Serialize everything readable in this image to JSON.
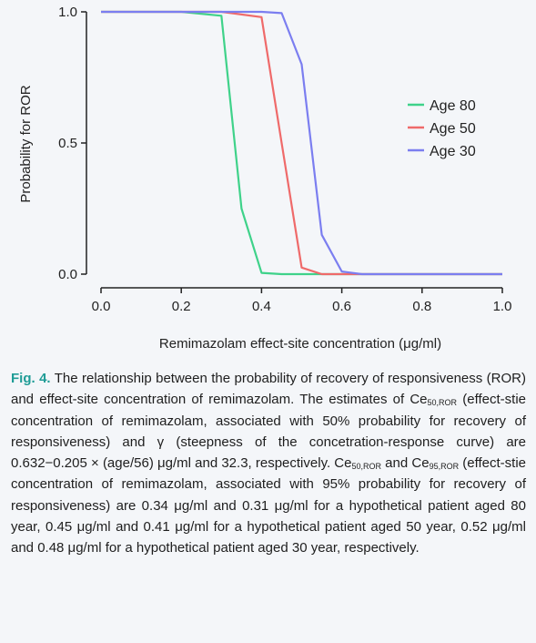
{
  "chart_data": {
    "type": "line",
    "xlabel": "Remimazolam effect-site concentration (μg/ml)",
    "ylabel": "Probability for ROR",
    "xlim": [
      0,
      1.0
    ],
    "ylim": [
      0,
      1.0
    ],
    "xticks": [
      "0.0",
      "0.2",
      "0.4",
      "0.6",
      "0.8",
      "1.0"
    ],
    "yticks": [
      "0.0",
      "0.5",
      "1.0"
    ],
    "grid": false,
    "legend_position": "right",
    "series": [
      {
        "name": "Age 80",
        "color": "#3fd28a",
        "points": [
          [
            0,
            1
          ],
          [
            0.2,
            1
          ],
          [
            0.3,
            0.985
          ],
          [
            0.35,
            0.25
          ],
          [
            0.4,
            0.005
          ],
          [
            0.45,
            0
          ],
          [
            1.0,
            0
          ]
        ]
      },
      {
        "name": "Age 50",
        "color": "#ef6a6a",
        "points": [
          [
            0,
            1
          ],
          [
            0.3,
            1
          ],
          [
            0.4,
            0.98
          ],
          [
            0.45,
            0.5
          ],
          [
            0.5,
            0.025
          ],
          [
            0.55,
            0
          ],
          [
            1.0,
            0
          ]
        ]
      },
      {
        "name": "Age 30",
        "color": "#7b7ef0",
        "points": [
          [
            0,
            1
          ],
          [
            0.3,
            1
          ],
          [
            0.4,
            1
          ],
          [
            0.45,
            0.995
          ],
          [
            0.5,
            0.8
          ],
          [
            0.55,
            0.15
          ],
          [
            0.6,
            0.01
          ],
          [
            0.65,
            0
          ],
          [
            1.0,
            0
          ]
        ]
      }
    ]
  },
  "caption": {
    "fig_label": "Fig. 4.",
    "p1": " The relationship between the probability of recovery of responsiveness (ROR) and effect-site concentration of remimazolam. The estimates of Ce",
    "sub1": "50,ROR",
    "p2": " (effect-stie concentration of remimazolam, associated with 50% probability for recovery of responsiveness) and γ (steepness of the concetration-response curve) are 0.632−0.205 × (age/56) μg/ml and 32.3, respectively. Ce",
    "sub2": "50,ROR",
    "p3": " and Ce",
    "sub3": "95,ROR",
    "p4": " (effect-stie concentration of remimazolam, associated with 95% probability for recovery of responsiveness) are 0.34 μg/ml and 0.31 μg/ml for a hypothetical patient aged 80 year, 0.45 μg/ml and 0.41 μg/ml for a hypothetical patient aged 50 year, 0.52 μg/ml and 0.48 μg/ml for a hypothetical patient aged 30 year, respectively."
  }
}
